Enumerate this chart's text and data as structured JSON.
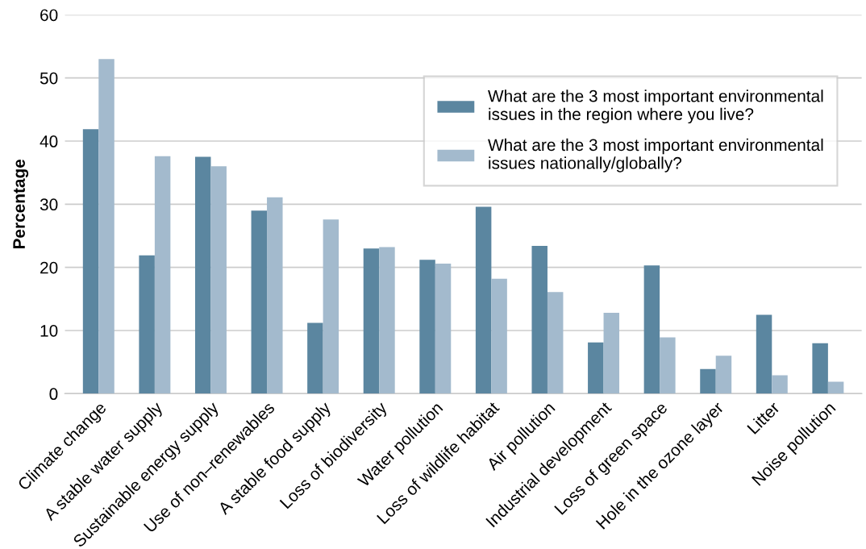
{
  "chart_data": {
    "type": "bar",
    "ylabel": "Percentage",
    "categories": [
      "Climate change",
      "A stable water supply",
      "Sustainable energy supply",
      "Use of non–renewables",
      "A stable food supply",
      "Loss of biodiversity",
      "Water pollution",
      "Loss of wildlife habitat",
      "Air pollution",
      "Industrial development",
      "Loss of green space",
      "Hole in the ozone layer",
      "Litter",
      "Noise pollution"
    ],
    "series": [
      {
        "name": "What are the 3 most important environmental issues in the region where you live?",
        "color": "#5b86a0",
        "values": [
          41.9,
          21.9,
          37.5,
          29.0,
          11.2,
          23.0,
          21.2,
          29.6,
          23.4,
          8.1,
          20.3,
          3.9,
          12.5,
          8.0
        ]
      },
      {
        "name": "What are the 3 most important environmental issues nationally/globally?",
        "color": "#a3bacd",
        "values": [
          53.0,
          37.6,
          36.0,
          31.1,
          27.6,
          23.2,
          20.6,
          18.2,
          16.1,
          12.8,
          8.9,
          6.0,
          2.9,
          1.9
        ]
      }
    ],
    "ylim": [
      0,
      60
    ],
    "yticks": [
      0,
      10,
      20,
      30,
      40,
      50,
      60
    ],
    "grid": "y",
    "legend": "top right"
  }
}
